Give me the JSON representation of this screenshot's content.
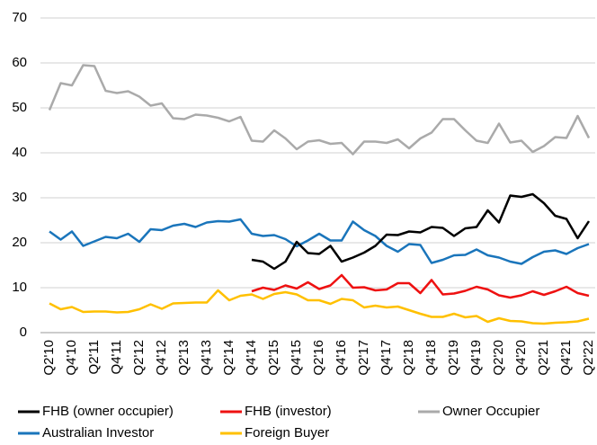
{
  "chart_data": {
    "type": "line",
    "categories": [
      "Q2'10",
      null,
      "Q4'10",
      null,
      "Q2'11",
      null,
      "Q4'11",
      null,
      "Q2'12",
      null,
      "Q4'12",
      null,
      "Q2'13",
      null,
      "Q4'13",
      null,
      "Q2'14",
      null,
      "Q4'14",
      null,
      "Q2'15",
      null,
      "Q4'15",
      null,
      "Q2'16",
      null,
      "Q4'16",
      null,
      "Q2'17",
      null,
      "Q4'17",
      null,
      "Q2'18",
      null,
      "Q4'18",
      null,
      "Q2'19",
      null,
      "Q4'19",
      null,
      "Q2'20",
      null,
      "Q4'20",
      null,
      "Q2'21",
      null,
      "Q4'21",
      null,
      "Q2'22"
    ],
    "ylim": [
      0,
      70
    ],
    "yticks": [
      0,
      10,
      20,
      30,
      40,
      50,
      60,
      70
    ],
    "grid": true,
    "series": [
      {
        "name": "FHB (owner occupier)",
        "color": "#000000",
        "values": [
          null,
          null,
          null,
          null,
          null,
          null,
          null,
          null,
          null,
          null,
          null,
          null,
          null,
          null,
          null,
          null,
          null,
          null,
          16.2,
          15.8,
          14.2,
          15.8,
          20.2,
          17.7,
          17.5,
          19.3,
          15.8,
          16.7,
          17.8,
          19.3,
          21.8,
          21.7,
          22.5,
          22.3,
          23.5,
          23.3,
          21.5,
          23.2,
          23.5,
          27.2,
          24.5,
          30.5,
          30.2,
          30.8,
          28.8,
          26,
          25.3,
          21,
          24.8
        ]
      },
      {
        "name": "FHB (investor)",
        "color": "#ee1111",
        "values": [
          null,
          null,
          null,
          null,
          null,
          null,
          null,
          null,
          null,
          null,
          null,
          null,
          null,
          null,
          null,
          null,
          null,
          null,
          9.2,
          10,
          9.5,
          10.5,
          9.8,
          11.2,
          9.7,
          10.5,
          12.8,
          10,
          10.1,
          9.4,
          9.6,
          11,
          11,
          8.8,
          11.7,
          8.5,
          8.7,
          9.3,
          10.2,
          9.6,
          8.3,
          7.8,
          8.3,
          9.2,
          8.4,
          9.2,
          10.2,
          8.8,
          8.2
        ]
      },
      {
        "name": "Owner Occupier",
        "color": "#aaaaaa",
        "values": [
          49.5,
          55.5,
          55,
          59.5,
          59.3,
          53.8,
          53.3,
          53.7,
          52.5,
          50.5,
          51,
          47.7,
          47.5,
          48.5,
          48.3,
          47.8,
          47,
          48,
          42.7,
          42.5,
          45,
          43.2,
          40.8,
          42.5,
          42.8,
          42,
          42.2,
          39.7,
          42.5,
          42.5,
          42.2,
          43,
          41,
          43.2,
          44.5,
          47.5,
          47.5,
          45,
          42.7,
          42.2,
          46.5,
          42.3,
          42.7,
          40.2,
          41.5,
          43.5,
          43.3,
          48.2,
          43.3
        ]
      },
      {
        "name": "Australian Investor",
        "color": "#1a75bb",
        "values": [
          22.5,
          20.7,
          22.5,
          19.3,
          20.3,
          21.3,
          21,
          22,
          20.2,
          23,
          22.8,
          23.8,
          24.2,
          23.5,
          24.5,
          24.8,
          24.7,
          25.2,
          22,
          21.5,
          21.7,
          20.8,
          19.2,
          20.5,
          22,
          20.5,
          20.5,
          24.7,
          22.8,
          21.5,
          19.3,
          18,
          19.7,
          19.5,
          15.5,
          16.2,
          17.2,
          17.3,
          18.5,
          17.2,
          16.7,
          15.8,
          15.3,
          16.8,
          18,
          18.3,
          17.5,
          18.8,
          19.7
        ]
      },
      {
        "name": "Foreign Buyer",
        "color": "#ffc000",
        "values": [
          6.5,
          5.2,
          5.7,
          4.6,
          4.7,
          4.7,
          4.5,
          4.6,
          5.2,
          6.3,
          5.3,
          6.5,
          6.6,
          6.7,
          6.7,
          9.4,
          7.2,
          8.2,
          8.5,
          7.5,
          8.6,
          9,
          8.5,
          7.2,
          7.2,
          6.4,
          7.5,
          7.2,
          5.6,
          6,
          5.6,
          5.8,
          5,
          4.2,
          3.5,
          3.5,
          4.2,
          3.4,
          3.7,
          2.4,
          3.2,
          2.6,
          2.5,
          2.1,
          2,
          2.2,
          2.3,
          2.5,
          3.1
        ]
      }
    ]
  }
}
